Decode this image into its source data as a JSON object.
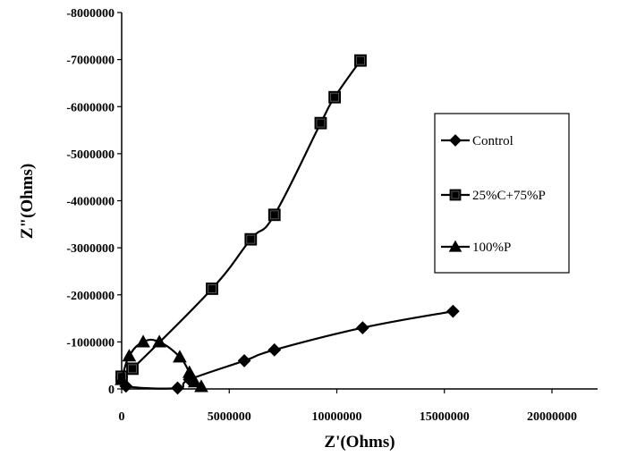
{
  "chart_data": {
    "type": "scatter",
    "title": "",
    "xlabel": "Z'(Ohms)",
    "ylabel": "Z\"(Ohms)",
    "xlim": [
      0,
      20000000
    ],
    "ylim": [
      0,
      -8000000
    ],
    "x_ticks": [
      0,
      5000000,
      10000000,
      15000000,
      20000000
    ],
    "x_tick_labels": [
      "0",
      "5000000",
      "10000000",
      "15000000",
      "20000000"
    ],
    "y_ticks": [
      0,
      -1000000,
      -2000000,
      -3000000,
      -4000000,
      -5000000,
      -6000000,
      -7000000,
      -8000000
    ],
    "y_tick_labels": [
      "0",
      "-1000000",
      "-2000000",
      "-3000000",
      "-4000000",
      "-5000000",
      "-6000000",
      "-7000000",
      "-8000000"
    ],
    "grid": false,
    "legend_position": "right",
    "series": [
      {
        "name": "Control",
        "marker": "diamond",
        "color": "#000000",
        "points": [
          [
            0,
            -250000
          ],
          [
            200000,
            -60000
          ],
          [
            2600000,
            -20000
          ],
          [
            3150000,
            -200000
          ],
          [
            5700000,
            -600000
          ],
          [
            7100000,
            -830000
          ],
          [
            11200000,
            -1300000
          ],
          [
            15400000,
            -1650000
          ]
        ]
      },
      {
        "name": "25%C+75%P",
        "marker": "square",
        "color": "#000000",
        "points": [
          [
            0,
            -260000
          ],
          [
            500000,
            -430000
          ],
          [
            4200000,
            -2130000
          ],
          [
            6000000,
            -3180000
          ],
          [
            7100000,
            -3700000
          ],
          [
            9250000,
            -5650000
          ],
          [
            9900000,
            -6200000
          ],
          [
            11100000,
            -6980000
          ]
        ]
      },
      {
        "name": "100%P",
        "marker": "triangle",
        "color": "#000000",
        "points": [
          [
            0,
            -200000
          ],
          [
            350000,
            -700000
          ],
          [
            1000000,
            -1000000
          ],
          [
            1750000,
            -1000000
          ],
          [
            2700000,
            -680000
          ],
          [
            3150000,
            -350000
          ],
          [
            3400000,
            -150000
          ],
          [
            3700000,
            -50000
          ]
        ]
      }
    ]
  }
}
